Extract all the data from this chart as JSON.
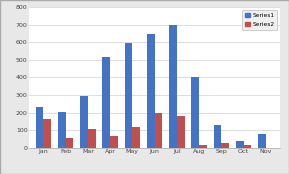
{
  "months": [
    "Jan",
    "Feb",
    "Mar",
    "Apr",
    "May",
    "Jun",
    "Jul",
    "Aug",
    "Sep",
    "Oct",
    "Nov"
  ],
  "series1": [
    230,
    205,
    295,
    515,
    595,
    645,
    695,
    405,
    130,
    40,
    80
  ],
  "series2": [
    165,
    55,
    110,
    65,
    120,
    200,
    180,
    15,
    25,
    15,
    0
  ],
  "series1_color": "#4472C4",
  "series2_color": "#C0504D",
  "ylim": [
    0,
    800
  ],
  "yticks": [
    0,
    100,
    200,
    300,
    400,
    500,
    600,
    700,
    800
  ],
  "legend_labels": [
    "Series1",
    "Series2"
  ],
  "outer_bg": "#E8E8E8",
  "plot_bg": "#FFFFFF",
  "grid_color": "#D0D0D0",
  "border_color": "#AAAAAA"
}
